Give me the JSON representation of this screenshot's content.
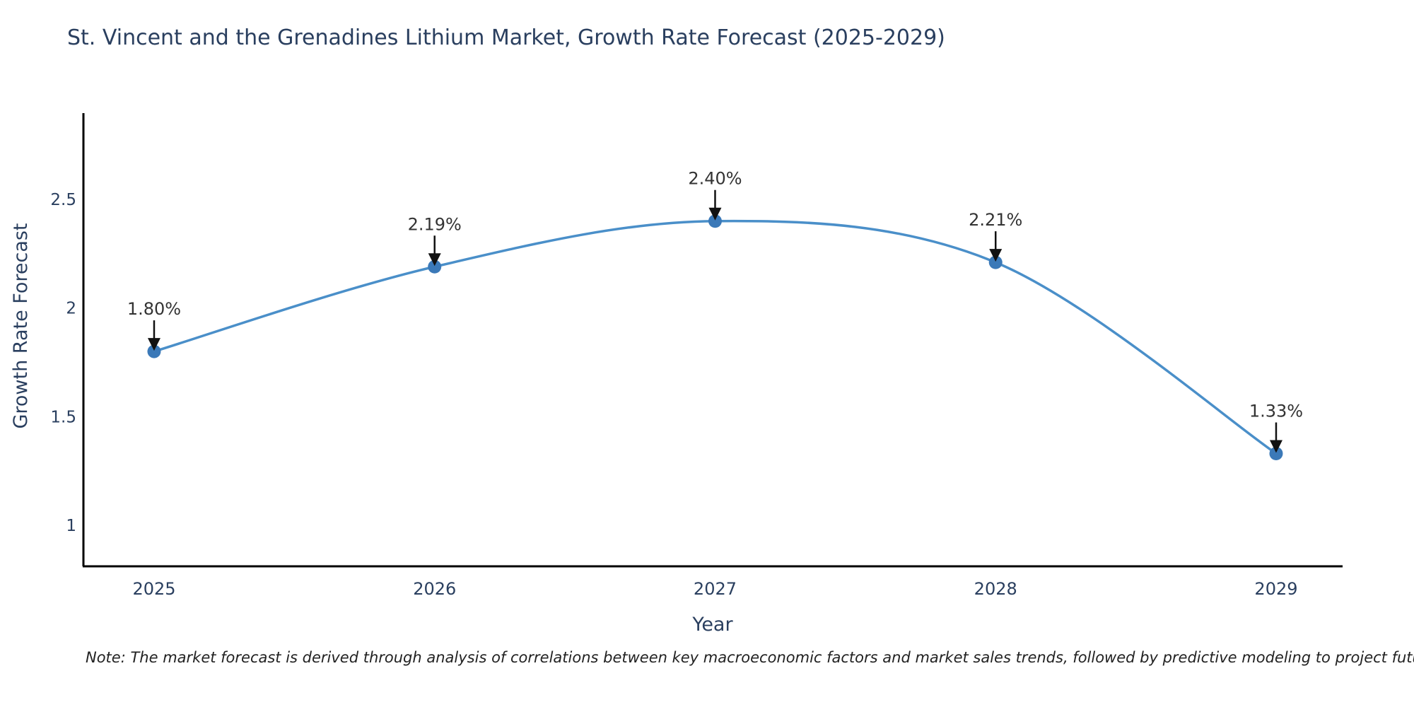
{
  "title": "St. Vincent and the Grenadines Lithium Market, Growth Rate Forecast (2025-2029)",
  "note": "Note: The market forecast is derived through analysis of correlations between key macroeconomic factors and market sales trends, followed by predictive modeling to project future sales",
  "colors": {
    "background": "#ffffff",
    "line": "#4a8fc9",
    "marker": "#3b79b8",
    "axis": "#000000",
    "tick_text": "#2a3f5f",
    "axis_title_text": "#2a3f5f",
    "annotation_text": "#333333",
    "arrow": "#111111"
  },
  "chart_data": {
    "type": "line",
    "title": "St. Vincent and the Grenadines Lithium Market, Growth Rate Forecast (2025-2029)",
    "xlabel": "Year",
    "ylabel": "Growth Rate Forecast",
    "x": [
      2025,
      2026,
      2027,
      2028,
      2029
    ],
    "values": [
      1.8,
      2.19,
      2.4,
      2.21,
      1.33
    ],
    "point_labels": [
      "1.80%",
      "2.19%",
      "2.40%",
      "2.21%",
      "1.33%"
    ],
    "yticks": [
      1,
      1.5,
      2,
      2.5
    ],
    "ytick_labels": [
      "1",
      "1.5",
      "2",
      "2.5"
    ],
    "xtick_labels": [
      "2025",
      "2026",
      "2027",
      "2028",
      "2029"
    ],
    "xlim": [
      2024.748,
      2029.237
    ],
    "ylim": [
      0.811,
      2.897
    ],
    "grid": false,
    "legend_position": "none",
    "line_shape": "spline",
    "markers": true
  }
}
